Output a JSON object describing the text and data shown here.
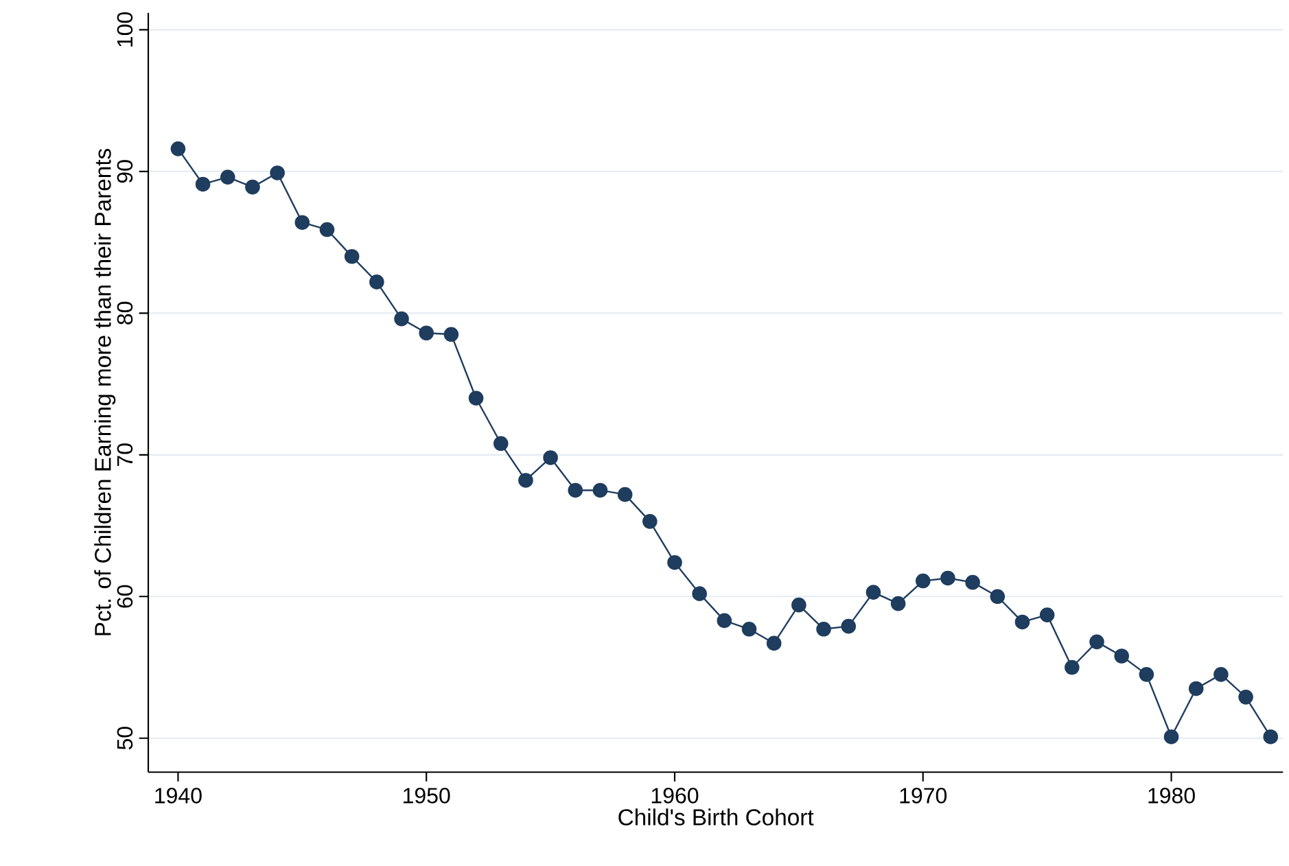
{
  "chart_data": {
    "type": "line",
    "xlabel": "Child's Birth Cohort",
    "ylabel": "Pct. of Children Earning more than their Parents",
    "x": [
      1940,
      1941,
      1942,
      1943,
      1944,
      1945,
      1946,
      1947,
      1948,
      1949,
      1950,
      1951,
      1952,
      1953,
      1954,
      1955,
      1956,
      1957,
      1958,
      1959,
      1960,
      1961,
      1962,
      1963,
      1964,
      1965,
      1966,
      1967,
      1968,
      1969,
      1970,
      1971,
      1972,
      1973,
      1974,
      1975,
      1976,
      1977,
      1978,
      1979,
      1980,
      1981,
      1982,
      1983,
      1984
    ],
    "values": [
      91.6,
      89.1,
      89.6,
      88.9,
      89.9,
      86.4,
      85.9,
      84.0,
      82.2,
      79.6,
      78.6,
      78.5,
      74.0,
      70.8,
      68.2,
      69.8,
      67.5,
      67.5,
      67.2,
      65.3,
      62.4,
      60.2,
      58.3,
      57.7,
      56.7,
      59.4,
      57.7,
      57.9,
      60.3,
      59.5,
      61.1,
      61.3,
      61.0,
      60.0,
      58.2,
      58.7,
      55.0,
      56.8,
      55.8,
      54.5,
      50.1,
      53.5,
      54.5,
      52.9,
      50.1
    ],
    "color": "#1f3d5e",
    "marker": "circle",
    "line_style": "solid",
    "grid": "y",
    "xlim": [
      1938.8,
      1984.5
    ],
    "ylim": [
      47.6,
      101.2
    ],
    "xticks": [
      1940,
      1950,
      1960,
      1970,
      1980
    ],
    "yticks": [
      50,
      60,
      70,
      80,
      90,
      100
    ]
  }
}
